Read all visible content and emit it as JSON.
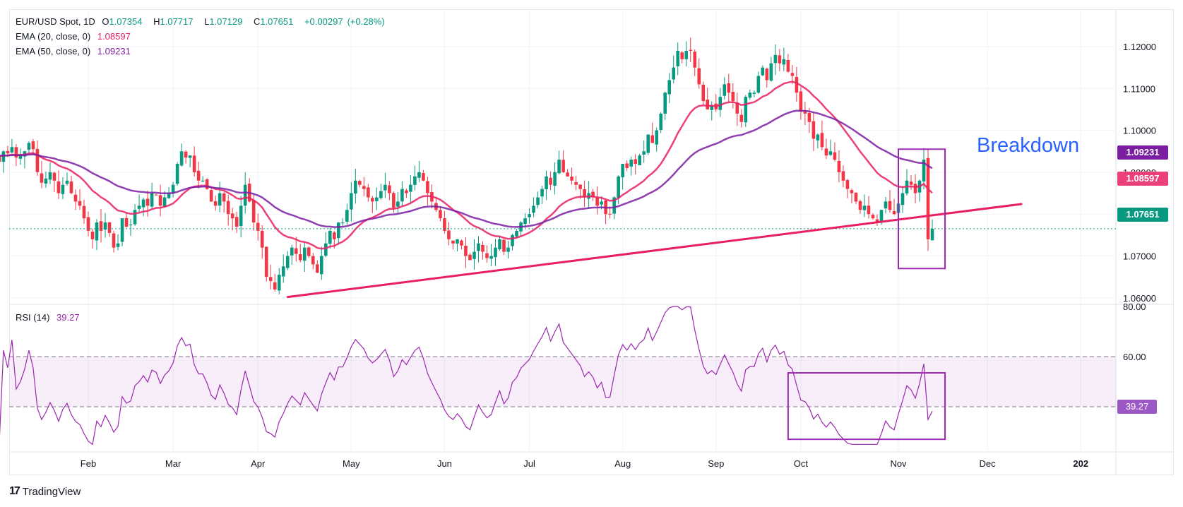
{
  "header": {
    "symbol": "EUR/USD Spot, 1D",
    "open_label": "O",
    "open": "1.07354",
    "high_label": "H",
    "high": "1.07717",
    "low_label": "L",
    "low": "1.07129",
    "close_label": "C",
    "close": "1.07651",
    "change": "+0.00297",
    "change_pct": "(+0.28%)"
  },
  "indicators": {
    "ema20": {
      "label": "EMA (20, close, 0)",
      "value": "1.08597",
      "color": "#e91e63"
    },
    "ema50": {
      "label": "EMA (50, close, 0)",
      "value": "1.09231",
      "color": "#7b1fa2"
    },
    "rsi": {
      "label": "RSI (14)",
      "value": "39.27",
      "color": "#9c27b0"
    }
  },
  "price_tags": {
    "ema50": "1.09231",
    "ema20": "1.08597",
    "last": "1.07651",
    "rsi": "39.27"
  },
  "annotation": {
    "text": "Breakdown",
    "color": "#2962ff"
  },
  "branding": {
    "logo": "TradingView"
  },
  "colors": {
    "up": "#089981",
    "down": "#f23645",
    "trendline": "#e91e63",
    "box": "#9c27b0"
  },
  "chart_data": [
    {
      "type": "candlestick",
      "title": "EUR/USD Spot, 1D",
      "ylim": [
        1.055,
        1.125
      ],
      "yticks": [
        "1.12000",
        "1.11000",
        "1.10000",
        "1.09000",
        "1.08000",
        "1.07000",
        "1.06000"
      ],
      "ytick_values": [
        1.12,
        1.11,
        1.1,
        1.09,
        1.08,
        1.07,
        1.06
      ],
      "xticks": [
        "Feb",
        "Mar",
        "Apr",
        "May",
        "Jun",
        "Jul",
        "Aug",
        "Sep",
        "Oct",
        "Nov",
        "Dec",
        "202"
      ],
      "xtick_index": [
        22,
        42,
        62,
        84,
        106,
        126,
        148,
        170,
        190,
        213,
        234,
        256
      ],
      "total_slots": 268,
      "closes": [
        1.094,
        1.0925,
        1.095,
        1.0945,
        1.096,
        1.0935,
        1.094,
        1.095,
        1.097,
        1.0955,
        1.09,
        1.0875,
        1.0885,
        1.09,
        1.088,
        1.085,
        1.087,
        1.088,
        1.085,
        1.083,
        1.082,
        1.079,
        1.076,
        1.074,
        1.078,
        1.076,
        1.078,
        1.0755,
        1.072,
        1.073,
        1.079,
        1.077,
        1.0775,
        1.081,
        1.082,
        1.0835,
        1.082,
        1.085,
        1.0845,
        1.082,
        1.084,
        1.085,
        1.087,
        1.092,
        1.095,
        1.0935,
        1.094,
        1.09,
        1.088,
        1.088,
        1.086,
        1.083,
        1.082,
        1.085,
        1.083,
        1.08,
        1.079,
        1.077,
        1.082,
        1.087,
        1.083,
        1.078,
        1.076,
        1.072,
        1.065,
        1.064,
        1.062,
        1.0655,
        1.0675,
        1.07,
        1.072,
        1.0705,
        1.069,
        1.072,
        1.07,
        1.068,
        1.066,
        1.07,
        1.073,
        1.076,
        1.074,
        1.078,
        1.078,
        1.081,
        1.085,
        1.088,
        1.087,
        1.086,
        1.084,
        1.083,
        1.084,
        1.0855,
        1.087,
        1.085,
        1.0815,
        1.083,
        1.086,
        1.085,
        1.087,
        1.089,
        1.09,
        1.088,
        1.085,
        1.083,
        1.081,
        1.079,
        1.076,
        1.074,
        1.073,
        1.074,
        1.0725,
        1.07,
        1.069,
        1.071,
        1.073,
        1.071,
        1.0695,
        1.07,
        1.072,
        1.074,
        1.071,
        1.072,
        1.075,
        1.076,
        1.078,
        1.079,
        1.08,
        1.082,
        1.084,
        1.086,
        1.089,
        1.087,
        1.09,
        1.093,
        1.09,
        1.089,
        1.088,
        1.087,
        1.086,
        1.084,
        1.085,
        1.084,
        1.082,
        1.083,
        1.08,
        1.08,
        1.084,
        1.089,
        1.092,
        1.091,
        1.093,
        1.092,
        1.094,
        1.095,
        1.099,
        1.097,
        1.1,
        1.104,
        1.109,
        1.112,
        1.115,
        1.119,
        1.117,
        1.119,
        1.119,
        1.115,
        1.111,
        1.107,
        1.105,
        1.106,
        1.105,
        1.108,
        1.111,
        1.109,
        1.107,
        1.104,
        1.102,
        1.108,
        1.109,
        1.109,
        1.113,
        1.115,
        1.112,
        1.116,
        1.118,
        1.116,
        1.117,
        1.114,
        1.113,
        1.109,
        1.1045,
        1.104,
        1.102,
        1.098,
        1.099,
        1.096,
        1.094,
        1.095,
        1.093,
        1.09,
        1.088,
        1.086,
        1.085,
        1.083,
        1.081,
        1.082,
        1.08,
        1.079,
        1.078,
        1.081,
        1.083,
        1.081,
        1.08,
        1.0825,
        1.085,
        1.088,
        1.087,
        1.085,
        1.088,
        1.093,
        1.074,
        1.0765
      ],
      "lines": [
        {
          "name": "EMA (20, close, 0)",
          "period": 20,
          "color": "#e91e63"
        },
        {
          "name": "EMA (50, close, 0)",
          "period": 50,
          "color": "#7b1fa2"
        }
      ],
      "last_close": 1.07651,
      "trendline": {
        "from": {
          "index": 69,
          "price": 1.0602
        },
        "to": {
          "index": 242,
          "price": 1.0824
        }
      },
      "highlight_box": {
        "from_index": 213,
        "to_index": 224,
        "price_top": 1.0955,
        "price_bottom": 1.067
      },
      "annotations": [
        "Breakdown"
      ]
    },
    {
      "type": "line",
      "title": "RSI (14)",
      "ylim": [
        25,
        80
      ],
      "yticks": [
        "80.00",
        "60.00"
      ],
      "ytick_values": [
        80,
        60
      ],
      "bands": [
        60,
        40
      ],
      "last_value": 39.27,
      "highlight_box": {
        "from_index": 187,
        "to_index": 224,
        "value_top": 53.5,
        "value_bottom": 27
      }
    }
  ]
}
